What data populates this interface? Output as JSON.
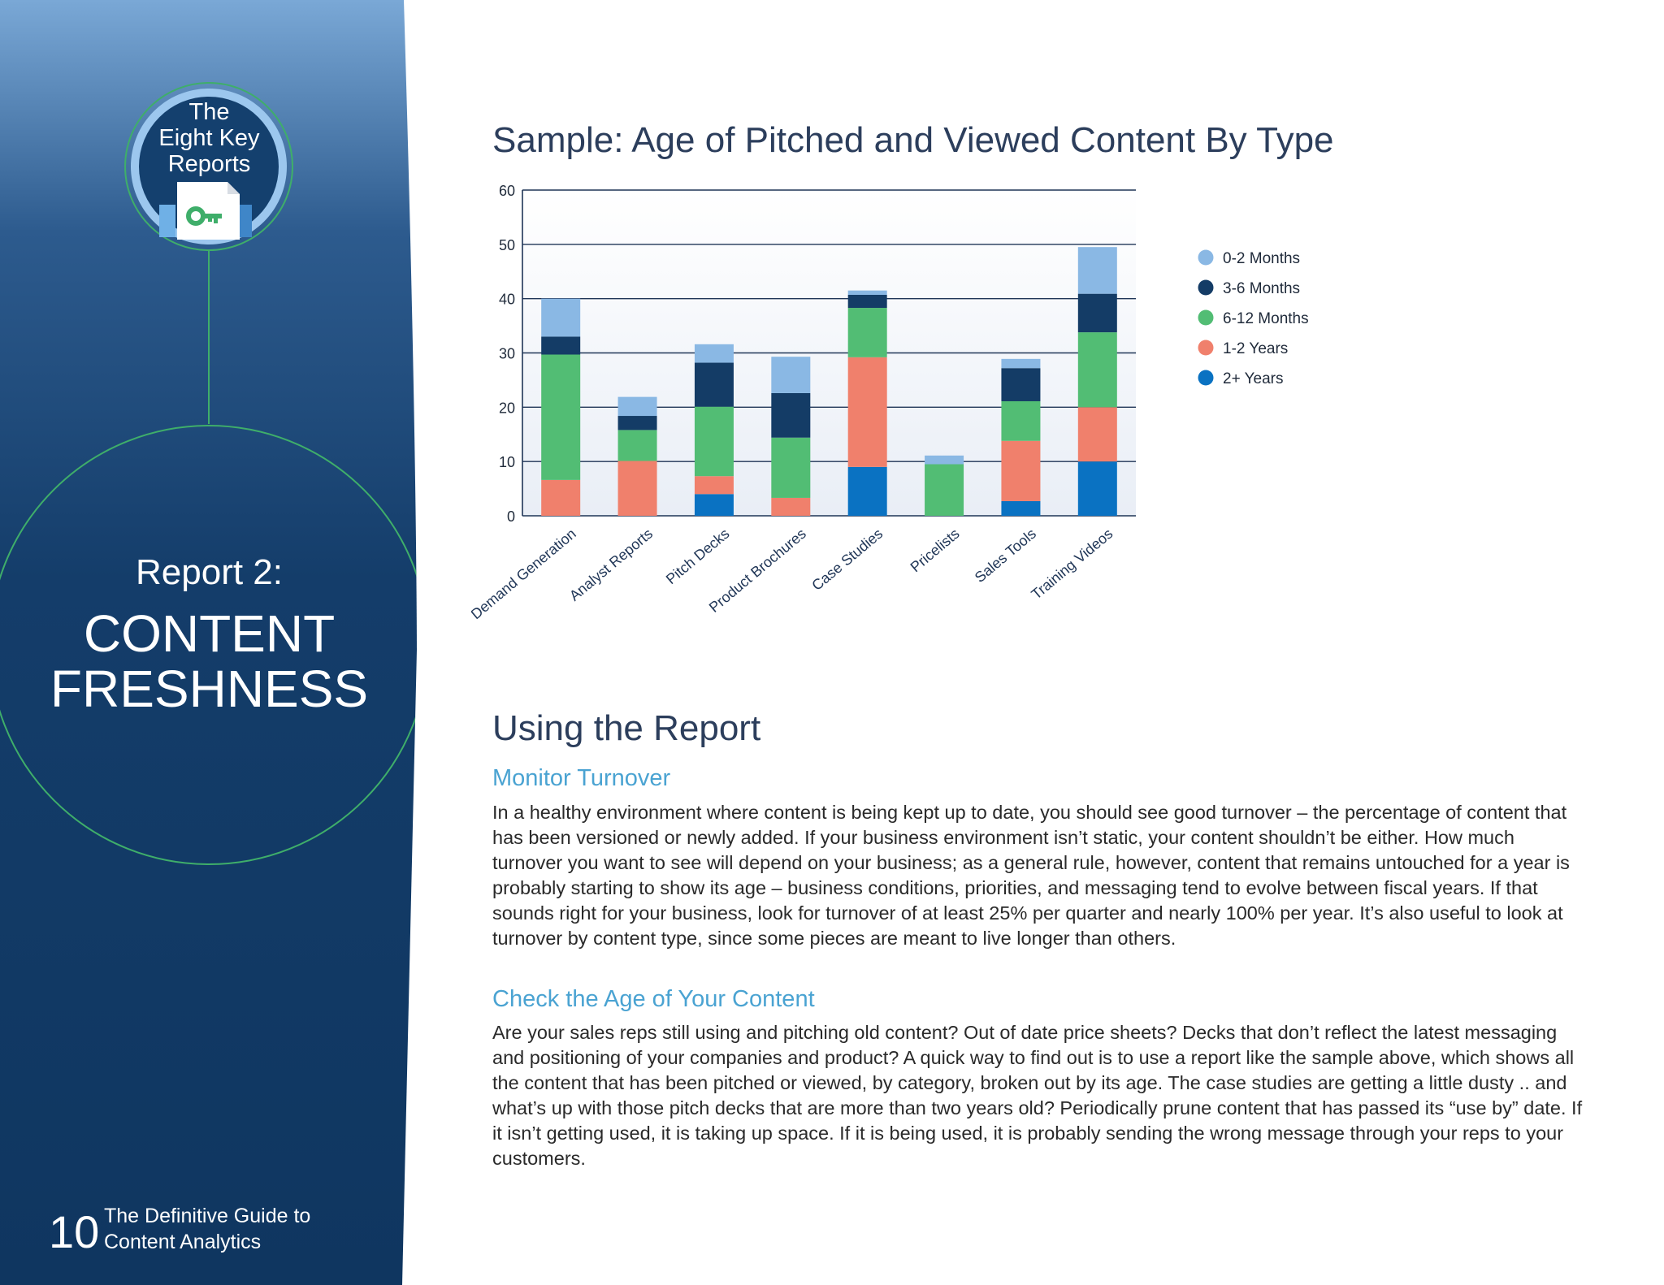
{
  "sidebar": {
    "badge_line1": "The",
    "badge_line2": "Eight Key",
    "badge_line3": "Reports",
    "report_label": "Report 2:",
    "report_title_line1": "CONTENT",
    "report_title_line2": "FRESHNESS",
    "page_number": "10",
    "guide_line1": "The Definitive Guide to",
    "guide_line2": "Content Analytics"
  },
  "chart": {
    "title": "Sample: Age of Pitched and Viewed Content By Type"
  },
  "chart_data": {
    "type": "bar",
    "stacked": true,
    "ylim": [
      0,
      60
    ],
    "yticks": [
      "0",
      "10",
      "20",
      "30",
      "40",
      "50",
      "60"
    ],
    "categories": [
      "Demand Generation",
      "Analyst Reports",
      "Pitch Decks",
      "Product Brochures",
      "Case Studies",
      "Pricelists",
      "Sales Tools",
      "Training Videos"
    ],
    "series": [
      {
        "name": "2+ Years",
        "color": "#0a72c2",
        "values": [
          0,
          0,
          4,
          0,
          9,
          0,
          2.7,
          10
        ]
      },
      {
        "name": "1-2 Years",
        "color": "#f0806c",
        "values": [
          6.6,
          10.1,
          3.3,
          3.3,
          20.2,
          0,
          11.1,
          10
        ]
      },
      {
        "name": "6-12 Months",
        "color": "#52bd74",
        "values": [
          23.1,
          5.7,
          12.8,
          11.1,
          9.1,
          9.5,
          7.3,
          13.8
        ]
      },
      {
        "name": "3-6 Months",
        "color": "#143c66",
        "values": [
          3.3,
          2.6,
          8.1,
          8.2,
          2.4,
          0,
          6.1,
          7.1
        ]
      },
      {
        "name": "0-2 Months",
        "color": "#8ab8e4",
        "values": [
          7,
          3.5,
          3.4,
          6.7,
          0.8,
          1.6,
          1.7,
          8.6
        ]
      }
    ],
    "legend": [
      "0-2 Months",
      "3-6 Months",
      "6-12 Months",
      "1-2 Years",
      "2+ Years"
    ],
    "legend_placement": "right",
    "grid": true
  },
  "body": {
    "section_title": "Using the Report",
    "sub1": "Monitor Turnover",
    "para1": "In a healthy environment where content is being kept up to date, you should see good turnover – the percentage of content that has been versioned or newly added. If your business environment isn’t static, your content shouldn’t be either. How much turnover you want to see will depend on your business; as a general rule, however, content that remains untouched for a year is probably starting to show its age – business conditions, priorities, and messaging tend to evolve between fiscal years. If that sounds right for your business, look for turnover of at least 25% per quarter and nearly 100% per year. It’s also useful to look at turnover by content type, since some pieces are meant to live longer than others.",
    "sub2": "Check the Age of Your Content",
    "para2": "Are your sales reps still using and pitching old content? Out of date price sheets? Decks that don’t reflect the latest messaging and positioning of your companies and product? A quick way to find out is to use a report like the sample above, which shows all the content that has been pitched or viewed, by category, broken out by its age. The case studies are getting a little dusty .. and what’s up with those pitch decks that are more than two years old? Periodically prune content that has passed its “use by” date. If it isn’t getting used, it is taking up space. If it is being used, it is probably sending the wrong message through your reps to your customers."
  }
}
